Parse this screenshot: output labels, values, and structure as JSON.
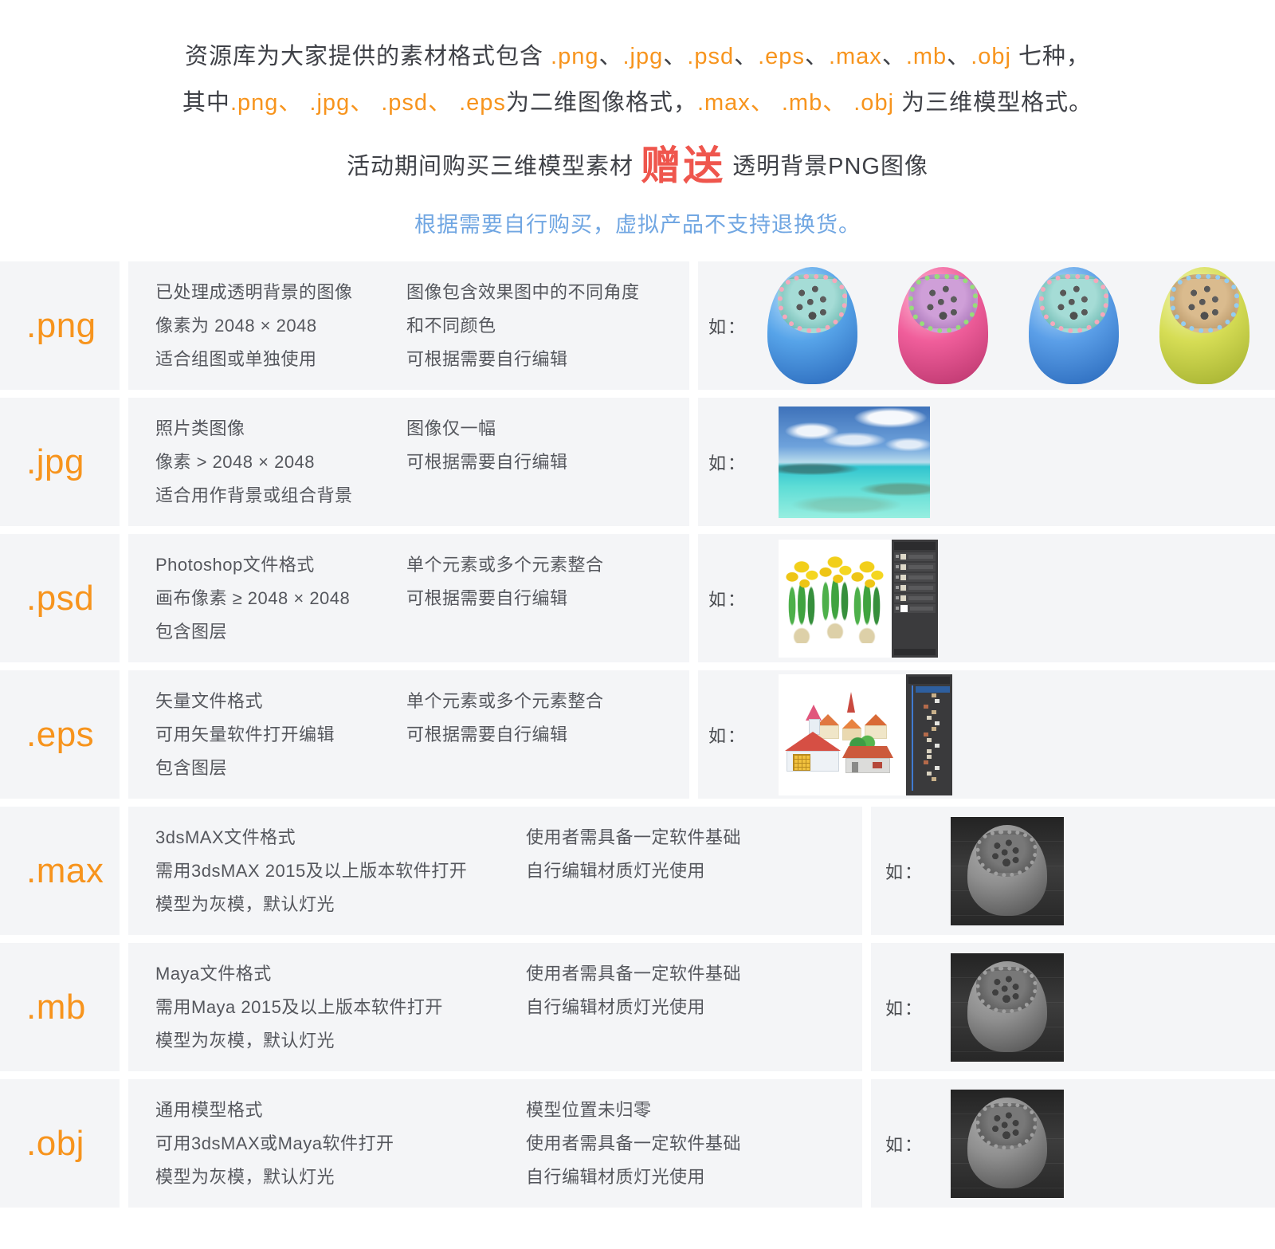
{
  "colors": {
    "accent_orange": "#f7941d",
    "notice_blue": "#70a6e2",
    "gift_red": "#ef564d",
    "row_background": "#f4f5f7",
    "intro_text": "#3f4147",
    "body_text": "#55575d"
  },
  "intro": {
    "line1": [
      {
        "t": "资源库为大家提供的素材格式包含 ",
        "c": "n"
      },
      {
        "t": ".png",
        "c": "o"
      },
      {
        "t": "、",
        "c": "n"
      },
      {
        "t": ".jpg",
        "c": "o"
      },
      {
        "t": "、",
        "c": "n"
      },
      {
        "t": ".psd",
        "c": "o"
      },
      {
        "t": "、",
        "c": "n"
      },
      {
        "t": ".eps",
        "c": "o"
      },
      {
        "t": "、",
        "c": "n"
      },
      {
        "t": ".max",
        "c": "o"
      },
      {
        "t": "、",
        "c": "n"
      },
      {
        "t": ".mb",
        "c": "o"
      },
      {
        "t": "、",
        "c": "n"
      },
      {
        "t": ".obj",
        "c": "o"
      },
      {
        "t": " 七种，",
        "c": "n"
      }
    ],
    "line2": [
      {
        "t": "其中",
        "c": "n"
      },
      {
        "t": ".png、 .jpg、 .psd、 .eps",
        "c": "o"
      },
      {
        "t": "为二维图像格式，",
        "c": "n"
      },
      {
        "t": ".max、 .mb、 .obj",
        "c": "o"
      },
      {
        "t": " 为三维模型格式。",
        "c": "n"
      }
    ],
    "promo": [
      {
        "t": "活动期间购买三维模型素材 ",
        "c": "n"
      },
      {
        "t": "赠送",
        "c": "gift"
      },
      {
        "t": " 透明背景PNG图像",
        "c": "n"
      }
    ],
    "notice": "根据需要自行购买，虚拟产品不支持退换货。"
  },
  "rows": [
    {
      "format": ".png",
      "col1": [
        "已处理成透明背景的图像",
        "像素为 2048 × 2048",
        "适合组图或单独使用"
      ],
      "col2": [
        "图像包含效果图中的不同角度",
        "和不同颜色",
        "可根据需要自行编辑"
      ],
      "example_label": "如：",
      "example": "four colored 3d capsule spheres",
      "spheres": [
        {
          "hi": "#c2e5fb",
          "outer": "#57a4e9",
          "sh": "#2f6fc0",
          "inner": "#a5dcd6",
          "innersh": "#5fb0a8",
          "bead": "#f5a8bb"
        },
        {
          "hi": "#ffc4dc",
          "outer": "#f05e9b",
          "sh": "#c03a72",
          "inner": "#cf9fd8",
          "innersh": "#9e6bb0",
          "bead": "#97dd7a"
        },
        {
          "hi": "#c2e5fb",
          "outer": "#5b9fe8",
          "sh": "#2f6fc0",
          "inner": "#a5dcd6",
          "innersh": "#5fb0a8",
          "bead": "#f5a8bb"
        },
        {
          "hi": "#f4f8bc",
          "outer": "#d6dd55",
          "sh": "#a9b534",
          "inner": "#dabb8e",
          "innersh": "#b08d5e",
          "bead": "#93cdf2"
        }
      ]
    },
    {
      "format": ".jpg",
      "col1": [
        "照片类图像",
        "像素 > 2048 × 2048",
        "适合用作背景或组合背景"
      ],
      "col2": [
        "图像仅一幅",
        "可根据需要自行编辑"
      ],
      "example_label": "如：",
      "example": "tropical sea and sky photo"
    },
    {
      "format": ".psd",
      "col1": [
        "Photoshop文件格式",
        "画布像素 ≥ 2048 × 2048",
        "包含图层"
      ],
      "col2": [
        "单个元素或多个元素整合",
        "可根据需要自行编辑"
      ],
      "example_label": "如：",
      "example": "daffodil flowers artwork with photoshop layers panel"
    },
    {
      "format": ".eps",
      "col1": [
        "矢量文件格式",
        "可用矢量软件打开编辑",
        "包含图层"
      ],
      "col2": [
        "单个元素或多个元素整合",
        "可根据需要自行编辑"
      ],
      "example_label": "如：",
      "example": "vector village houses artwork with illustrator layers panel"
    },
    {
      "format": ".max",
      "col1": [
        "3dsMAX文件格式",
        "需用3dsMAX 2015及以上版本软件打开",
        "模型为灰模，默认灯光"
      ],
      "col2": [
        "使用者需具备一定软件基础",
        "自行编辑材质灯光使用"
      ],
      "example_label": "如：",
      "example": "gray clay 3d model in dark viewport",
      "model": {
        "hi": "#b0b0b0",
        "outer": "#8f8f8f",
        "sh": "#565656",
        "inner": "#787878",
        "innersh": "#4e4e4e",
        "bead": "#a0a0a0",
        "dk": "#3f3f3f"
      }
    },
    {
      "format": ".mb",
      "col1": [
        "Maya文件格式",
        "需用Maya 2015及以上版本软件打开",
        "模型为灰模，默认灯光"
      ],
      "col2": [
        "使用者需具备一定软件基础",
        "自行编辑材质灯光使用"
      ],
      "example_label": "如：",
      "example": "gray clay 3d model in dark viewport",
      "model": {
        "hi": "#b0b0b0",
        "outer": "#8f8f8f",
        "sh": "#565656",
        "inner": "#787878",
        "innersh": "#4e4e4e",
        "bead": "#a0a0a0",
        "dk": "#3f3f3f"
      }
    },
    {
      "format": ".obj",
      "col1": [
        "通用模型格式",
        "可用3dsMAX或Maya软件打开",
        "模型为灰模，默认灯光"
      ],
      "col2": [
        "模型位置未归零",
        "使用者需具备一定软件基础",
        "自行编辑材质灯光使用"
      ],
      "example_label": "如：",
      "example": "gray clay 3d model in dark viewport",
      "model": {
        "hi": "#b0b0b0",
        "outer": "#8f8f8f",
        "sh": "#565656",
        "inner": "#787878",
        "innersh": "#4e4e4e",
        "bead": "#a0a0a0",
        "dk": "#3f3f3f"
      }
    }
  ]
}
